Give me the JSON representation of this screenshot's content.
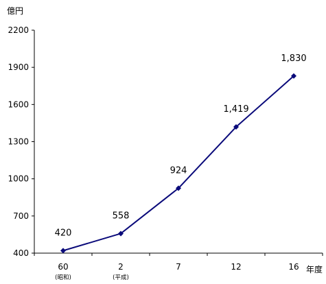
{
  "chart_data": {
    "type": "line",
    "title": "",
    "ylabel": "億円",
    "xlabel": "年度",
    "categories": [
      "60",
      "2",
      "7",
      "12",
      "16"
    ],
    "category_sublabels": [
      "(昭和)",
      "(平成)",
      "",
      "",
      ""
    ],
    "series": [
      {
        "values": [
          420,
          558,
          924,
          1419,
          1830
        ],
        "value_labels": [
          "420",
          "558",
          "924",
          "1,419",
          "1,830"
        ],
        "color": "#0a0a7a"
      }
    ],
    "ylim": [
      400,
      2200
    ],
    "yticks": [
      "400",
      "700",
      "1000",
      "1300",
      "1600",
      "1900",
      "2200"
    ],
    "grid": false,
    "legend": "none"
  }
}
